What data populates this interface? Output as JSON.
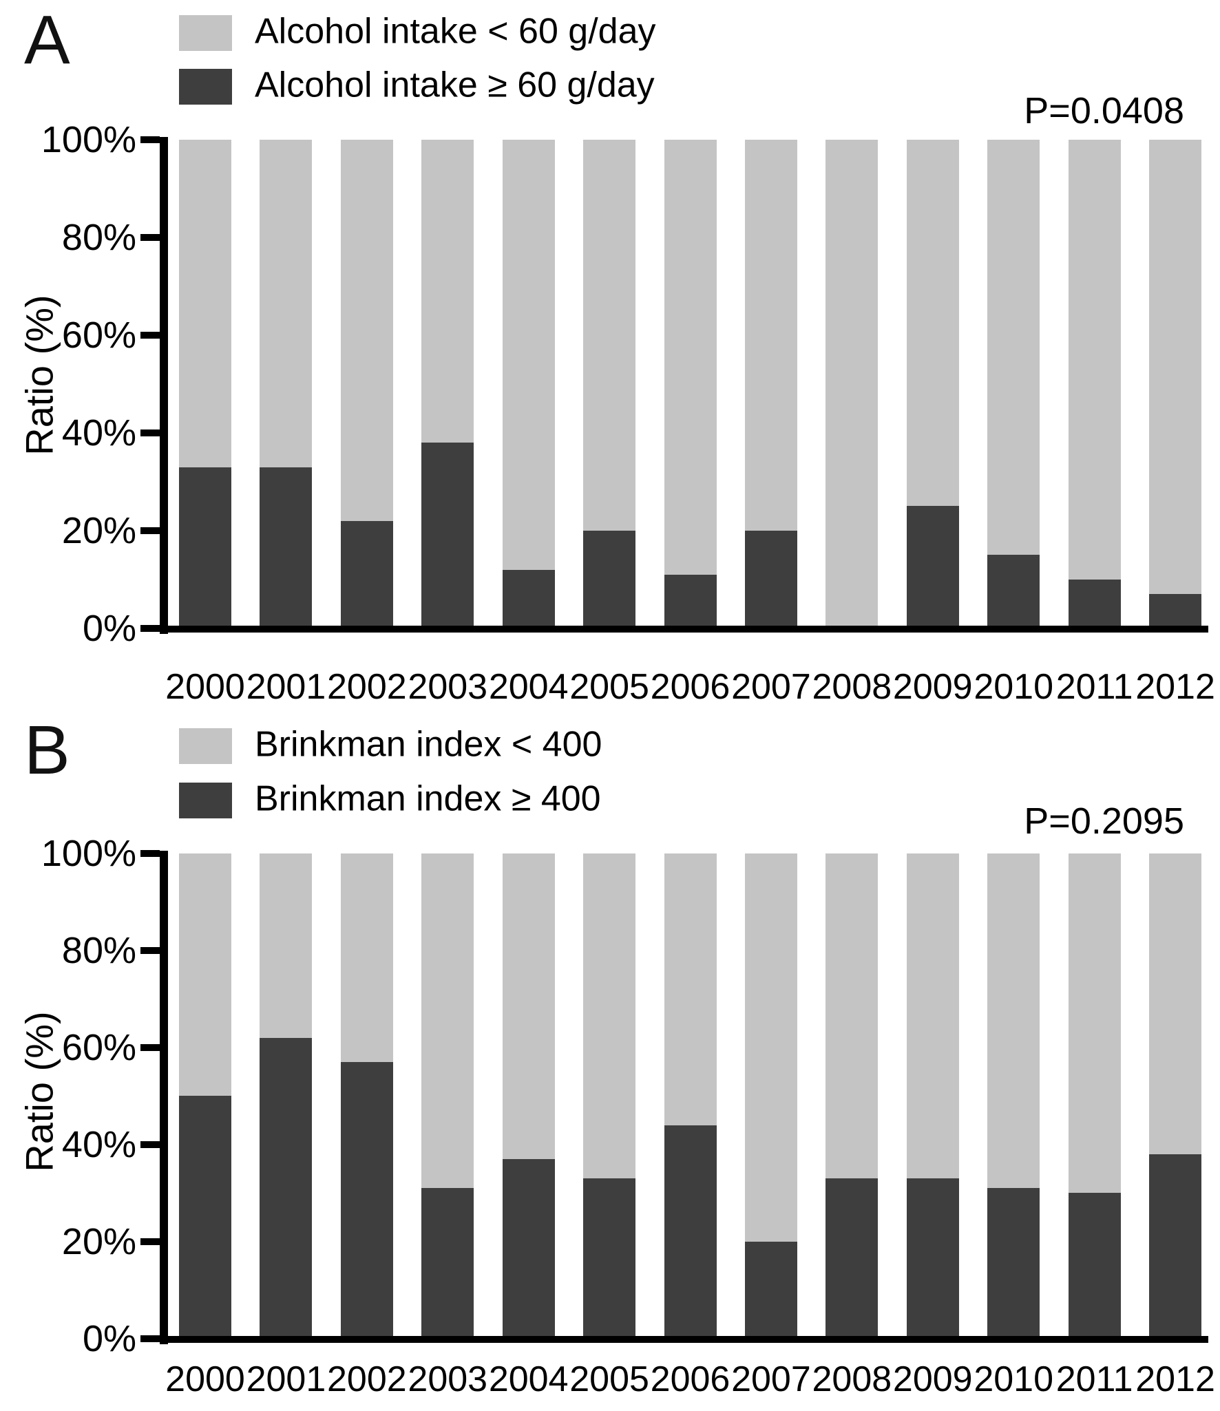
{
  "colors": {
    "light": "#c4c4c4",
    "dark": "#3e3e3e",
    "axis": "#000000"
  },
  "panels": [
    {
      "label": "A",
      "legend": [
        {
          "name": "light-series",
          "label": "Alcohol intake < 60 g/day",
          "color": "#c4c4c4"
        },
        {
          "name": "dark-series",
          "label": "Alcohol intake ≥ 60 g/day",
          "color": "#3e3e3e"
        }
      ],
      "p_value": "P=0.0408",
      "ylabel": "Ratio (%)",
      "ytick_labels": [
        "0%",
        "20%",
        "40%",
        "60%",
        "80%",
        "100%"
      ],
      "years": [
        "2000",
        "2001",
        "2002",
        "2003",
        "2004",
        "2005",
        "2006",
        "2007",
        "2008",
        "2009",
        "2010",
        "2011",
        "2012"
      ],
      "dark_pct": [
        33,
        33,
        22,
        38,
        12,
        20,
        11,
        20,
        0,
        25,
        15,
        10,
        7
      ]
    },
    {
      "label": "B",
      "legend": [
        {
          "name": "light-series",
          "label": "Brinkman index < 400",
          "color": "#c4c4c4"
        },
        {
          "name": "dark-series",
          "label": "Brinkman index ≥ 400",
          "color": "#3e3e3e"
        }
      ],
      "p_value": "P=0.2095",
      "ylabel": "Ratio (%)",
      "ytick_labels": [
        "0%",
        "20%",
        "40%",
        "60%",
        "80%",
        "100%"
      ],
      "years": [
        "2000",
        "2001",
        "2002",
        "2003",
        "2004",
        "2005",
        "2006",
        "2007",
        "2008",
        "2009",
        "2010",
        "2011",
        "2012"
      ],
      "dark_pct": [
        50,
        62,
        57,
        31,
        37,
        33,
        44,
        20,
        33,
        33,
        31,
        30,
        38
      ]
    }
  ],
  "chart_data": [
    {
      "type": "bar",
      "stacked": true,
      "panel": "A",
      "categories": [
        "2000",
        "2001",
        "2002",
        "2003",
        "2004",
        "2005",
        "2006",
        "2007",
        "2008",
        "2009",
        "2010",
        "2011",
        "2012"
      ],
      "series": [
        {
          "name": "Alcohol intake < 60 g/day",
          "values": [
            67,
            67,
            78,
            62,
            88,
            80,
            89,
            80,
            100,
            75,
            85,
            90,
            93
          ]
        },
        {
          "name": "Alcohol intake ≥ 60 g/day",
          "values": [
            33,
            33,
            22,
            38,
            12,
            20,
            11,
            20,
            0,
            25,
            15,
            10,
            7
          ]
        }
      ],
      "title": "",
      "xlabel": "",
      "ylabel": "Ratio (%)",
      "ylim": [
        0,
        100
      ],
      "yticks_percent": [
        0,
        20,
        40,
        60,
        80,
        100
      ],
      "grid": false,
      "legend_position": "top-left",
      "annotation": "P=0.0408"
    },
    {
      "type": "bar",
      "stacked": true,
      "panel": "B",
      "categories": [
        "2000",
        "2001",
        "2002",
        "2003",
        "2004",
        "2005",
        "2006",
        "2007",
        "2008",
        "2009",
        "2010",
        "2011",
        "2012"
      ],
      "series": [
        {
          "name": "Brinkman index < 400",
          "values": [
            50,
            38,
            43,
            69,
            63,
            67,
            56,
            80,
            67,
            67,
            69,
            70,
            62
          ]
        },
        {
          "name": "Brinkman index ≥ 400",
          "values": [
            50,
            62,
            57,
            31,
            37,
            33,
            44,
            20,
            33,
            33,
            31,
            30,
            38
          ]
        }
      ],
      "title": "",
      "xlabel": "",
      "ylabel": "Ratio (%)",
      "ylim": [
        0,
        100
      ],
      "yticks_percent": [
        0,
        20,
        40,
        60,
        80,
        100
      ],
      "grid": false,
      "legend_position": "top-left",
      "annotation": "P=0.2095"
    }
  ]
}
